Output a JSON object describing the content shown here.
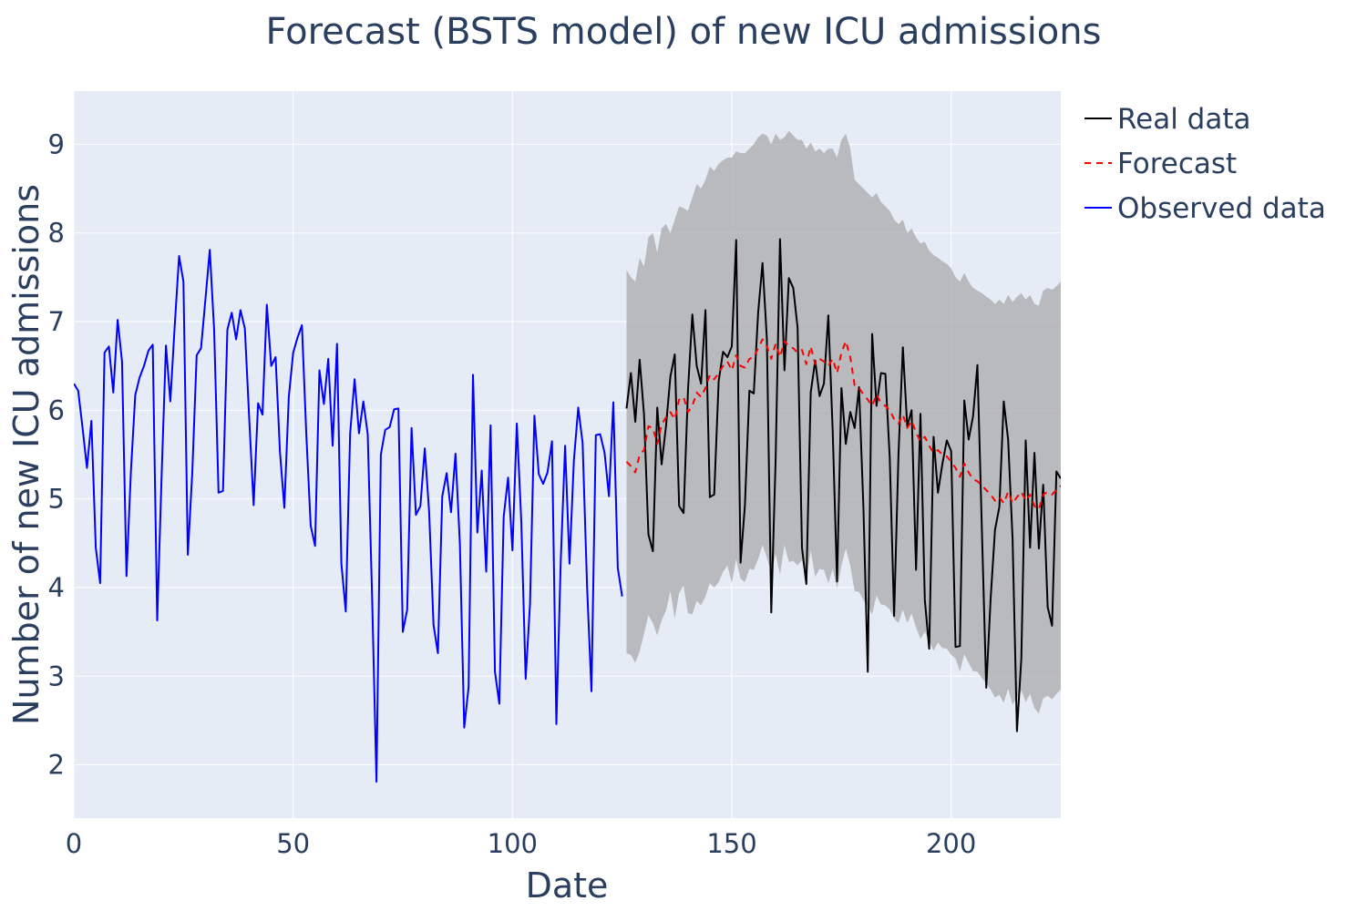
{
  "chart_data": {
    "type": "line",
    "title": "Forecast (BSTS model) of new ICU admissions",
    "xlabel": "Date",
    "ylabel": "Number of new ICU admissions",
    "xlim": [
      0,
      225
    ],
    "ylim": [
      1.4,
      9.6
    ],
    "xticks": [
      0,
      50,
      100,
      150,
      200
    ],
    "yticks": [
      2,
      3,
      4,
      5,
      6,
      7,
      8,
      9
    ],
    "grid": true,
    "legend_position": "top-right",
    "colors": {
      "plot_background": "#e5ecf6",
      "grid": "#ffffff",
      "band": "#a6a6a6",
      "observed": "#0000ff",
      "real": "#000000",
      "forecast": "#ff0000",
      "text": "#2a3f5f"
    },
    "series": [
      {
        "name": "Observed data",
        "style": "solid",
        "x_start": 0,
        "values": [
          6.3,
          6.22,
          5.8,
          5.35,
          5.88,
          4.45,
          4.05,
          6.65,
          6.72,
          6.2,
          7.02,
          6.55,
          4.13,
          5.3,
          6.17,
          6.37,
          6.5,
          6.67,
          6.74,
          3.63,
          5.25,
          6.73,
          6.1,
          6.95,
          7.74,
          7.45,
          4.37,
          5.3,
          6.62,
          6.7,
          7.25,
          7.81,
          6.9,
          5.07,
          5.09,
          6.91,
          7.1,
          6.8,
          7.13,
          6.92,
          5.9,
          4.93,
          6.08,
          5.95,
          7.19,
          6.5,
          6.6,
          5.53,
          4.9,
          6.15,
          6.65,
          6.82,
          6.96,
          5.73,
          4.7,
          4.47,
          6.45,
          6.07,
          6.58,
          5.6,
          6.75,
          4.27,
          3.73,
          5.74,
          6.35,
          5.74,
          6.1,
          5.73,
          3.9,
          1.81,
          5.5,
          5.78,
          5.81,
          6.01,
          6.02,
          3.5,
          3.75,
          5.8,
          4.82,
          4.92,
          5.57,
          4.85,
          3.58,
          3.26,
          5.03,
          5.29,
          4.85,
          5.51,
          4.5,
          2.42,
          2.88,
          6.4,
          4.62,
          5.32,
          4.18,
          5.83,
          3.05,
          2.69,
          4.8,
          5.24,
          4.42,
          5.85,
          4.75,
          2.97,
          3.82,
          5.94,
          5.28,
          5.17,
          5.3,
          5.65,
          2.46,
          4.3,
          5.6,
          4.27,
          5.43,
          6.03,
          5.63,
          4.01,
          2.83,
          5.72,
          5.73,
          5.52,
          5.03,
          6.09,
          4.22,
          3.9
        ]
      },
      {
        "name": "Real data",
        "style": "solid",
        "x_start": 126,
        "values": [
          6.02,
          6.42,
          5.87,
          6.57,
          5.95,
          4.6,
          4.41,
          6.03,
          5.39,
          5.82,
          6.38,
          6.63,
          4.92,
          4.84,
          6.22,
          7.08,
          6.5,
          6.3,
          7.13,
          5.02,
          5.05,
          6.33,
          6.66,
          6.6,
          6.72,
          7.92,
          4.28,
          4.93,
          6.22,
          6.19,
          7.1,
          7.66,
          6.8,
          3.72,
          5.45,
          7.93,
          6.45,
          7.49,
          7.38,
          6.93,
          4.45,
          4.04,
          6.2,
          6.56,
          6.16,
          6.3,
          7.07,
          5.77,
          4.07,
          6.25,
          5.62,
          5.98,
          5.8,
          6.26,
          4.91,
          3.05,
          6.86,
          6.05,
          6.42,
          6.41,
          5.47,
          3.68,
          5.5,
          6.71,
          5.82,
          6.0,
          4.2,
          5.96,
          3.86,
          3.31,
          5.7,
          5.07,
          5.39,
          5.66,
          5.54,
          3.33,
          3.34,
          6.11,
          5.67,
          5.93,
          6.51,
          4.66,
          2.87,
          3.87,
          4.65,
          4.91,
          6.1,
          5.67,
          4.55,
          2.38,
          3.2,
          5.66,
          4.45,
          5.52,
          4.44,
          5.16,
          3.78,
          3.57,
          5.31,
          5.23
        ]
      },
      {
        "name": "Forecast",
        "style": "dash",
        "x_start": 126,
        "values": [
          5.42,
          5.37,
          5.3,
          5.5,
          5.55,
          5.82,
          5.8,
          5.62,
          5.84,
          5.92,
          5.98,
          5.9,
          6.12,
          6.15,
          5.98,
          6.05,
          6.2,
          6.15,
          6.25,
          6.4,
          6.35,
          6.42,
          6.5,
          6.55,
          6.45,
          6.62,
          6.5,
          6.48,
          6.58,
          6.6,
          6.7,
          6.8,
          6.72,
          6.58,
          6.75,
          6.6,
          6.78,
          6.72,
          6.7,
          6.65,
          6.68,
          6.52,
          6.72,
          6.52,
          6.58,
          6.55,
          6.5,
          6.58,
          6.42,
          6.65,
          6.78,
          6.6,
          6.28,
          6.25,
          6.18,
          6.12,
          6.05,
          6.18,
          6.08,
          6.05,
          6.0,
          5.9,
          5.85,
          5.95,
          5.8,
          5.88,
          5.75,
          5.65,
          5.7,
          5.6,
          5.52,
          5.55,
          5.5,
          5.48,
          5.42,
          5.35,
          5.25,
          5.4,
          5.3,
          5.22,
          5.2,
          5.15,
          5.1,
          5.05,
          4.98,
          5.02,
          4.95,
          5.08,
          4.95,
          5.02,
          5.08,
          4.98,
          5.05,
          4.92,
          4.88,
          5.05,
          5.08,
          5.05,
          5.1,
          5.15
        ]
      }
    ],
    "band": {
      "x_start": 126,
      "upper": [
        7.58,
        7.5,
        7.45,
        7.72,
        7.62,
        7.95,
        8.0,
        7.78,
        8.05,
        8.1,
        8.0,
        8.15,
        8.3,
        8.28,
        8.25,
        8.4,
        8.55,
        8.5,
        8.6,
        8.75,
        8.7,
        8.78,
        8.82,
        8.85,
        8.85,
        8.92,
        8.9,
        8.9,
        8.95,
        9.0,
        9.08,
        9.12,
        9.1,
        9.0,
        9.12,
        9.05,
        9.08,
        9.15,
        9.1,
        9.05,
        9.05,
        8.95,
        9.02,
        8.92,
        8.95,
        8.9,
        8.95,
        8.95,
        8.85,
        9.05,
        9.12,
        8.95,
        8.6,
        8.55,
        8.5,
        8.45,
        8.4,
        8.45,
        8.35,
        8.3,
        8.25,
        8.15,
        8.1,
        8.15,
        8.0,
        8.05,
        7.95,
        7.88,
        7.9,
        7.8,
        7.75,
        7.72,
        7.68,
        7.65,
        7.6,
        7.5,
        7.45,
        7.55,
        7.45,
        7.38,
        7.35,
        7.32,
        7.28,
        7.25,
        7.2,
        7.25,
        7.2,
        7.3,
        7.22,
        7.28,
        7.32,
        7.25,
        7.3,
        7.2,
        7.18,
        7.35,
        7.38,
        7.36,
        7.4,
        7.45
      ]
    }
  },
  "legend": {
    "items": [
      {
        "label": "Real data",
        "color": "#000000",
        "dash": "solid"
      },
      {
        "label": "Forecast",
        "color": "#ff0000",
        "dash": "dash"
      },
      {
        "label": "Observed data",
        "color": "#0000ff",
        "dash": "solid"
      }
    ]
  }
}
